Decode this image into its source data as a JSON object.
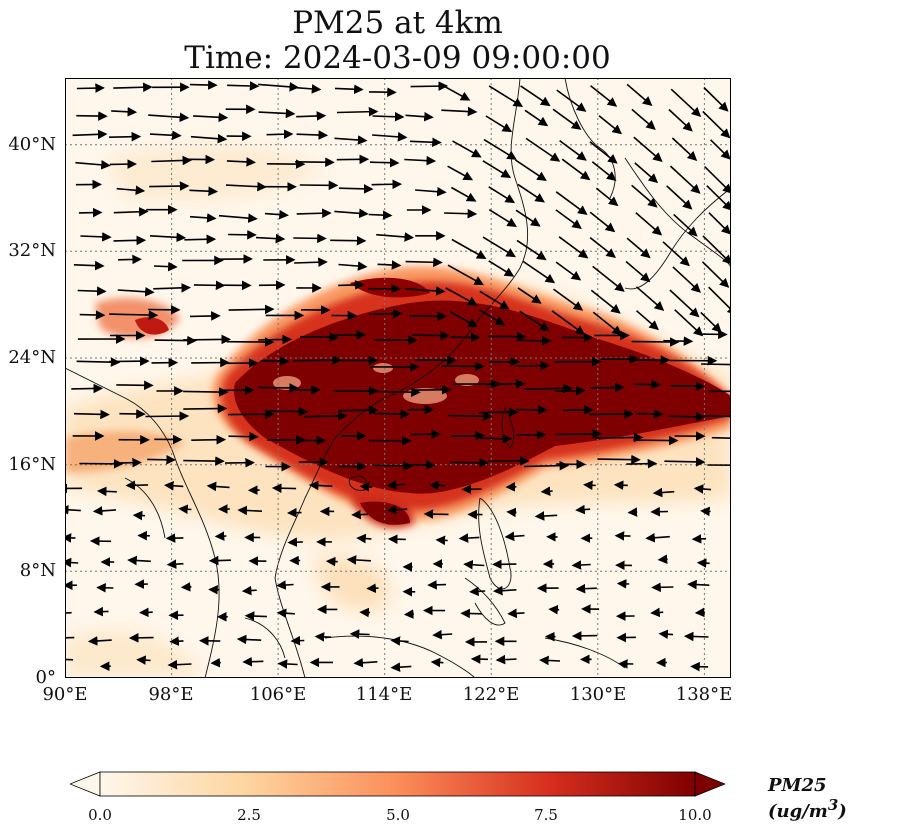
{
  "title": {
    "line1": "PM25 at 4km",
    "line2": "Time: 2024-03-09 09:00:00"
  },
  "map": {
    "projection": "PlateCarree",
    "lon_range": [
      90,
      140
    ],
    "lat_range": [
      0,
      45
    ],
    "gridlines": true,
    "x_ticks": [
      "90°E",
      "98°E",
      "106°E",
      "114°E",
      "122°E",
      "130°E",
      "138°E"
    ],
    "y_ticks": [
      "0°",
      "8°N",
      "16°N",
      "24°N",
      "32°N",
      "40°N"
    ],
    "field": "PM25",
    "plume_core": [
      {
        "lon": 116,
        "lat": 20.5,
        "value": 10.0
      },
      {
        "lon": 124,
        "lat": 21.5,
        "value": 10.0
      },
      {
        "lon": 131,
        "lat": 20.5,
        "value": 10.0
      },
      {
        "lon": 109,
        "lat": 22.5,
        "value": 10.0
      },
      {
        "lon": 115,
        "lat": 14.5,
        "value": 8.5
      },
      {
        "lon": 95,
        "lat": 26.5,
        "value": 6.0
      }
    ],
    "wind": "vectors (westerly flow, arrows)"
  },
  "colorbar": {
    "label": "PM25 (ug/m³)",
    "label_unit_base": "PM25 (ug/m",
    "label_unit_sup": "3",
    "label_unit_close": ")",
    "range": [
      0.0,
      10.0
    ],
    "ticks": [
      "0.0",
      "2.5",
      "5.0",
      "7.5",
      "10.0"
    ],
    "colormap": "OrRd",
    "colors": [
      "#fff7ec",
      "#fdd49e",
      "#fc8d59",
      "#d7301f",
      "#7f0000"
    ],
    "extend": "both"
  }
}
